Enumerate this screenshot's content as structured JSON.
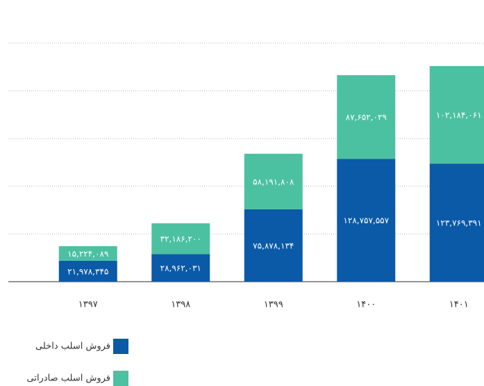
{
  "chart_data": {
    "type": "stacked_bar",
    "categories": [
      "۱۳۹۷",
      "۱۳۹۸",
      "۱۳۹۹",
      "۱۴۰۰",
      "۱۴۰۱"
    ],
    "series": [
      {
        "name": "فروش اسلب داخلی",
        "color": "#0b5aa8",
        "values": [
          21978345,
          28962031,
          75878134,
          128757557,
          123769391
        ],
        "value_labels": [
          "۲۱,۹۷۸,۳۴۵",
          "۲۸,۹۶۲,۰۳۱",
          "۷۵,۸۷۸,۱۳۴",
          "۱۲۸,۷۵۷,۵۵۷",
          "۱۲۳,۷۶۹,۳۹۱"
        ]
      },
      {
        "name": "فروش اسلب صادراتی",
        "color": "#4cc1a1",
        "values": [
          15224089,
          32186200,
          58191808,
          87652029,
          102184061
        ],
        "value_labels": [
          "۱۵,۲۲۴,۰۸۹",
          "۳۲,۱۸۶,۲۰۰",
          "۵۸,۱۹۱,۸۰۸",
          "۸۷,۶۵۲,۰۲۹",
          "۱۰۲,۱۸۴,۰۶۱"
        ]
      }
    ],
    "ylim": [
      0,
      250000000
    ],
    "yticks": [
      0,
      50000000,
      100000000,
      150000000,
      200000000,
      250000000
    ],
    "grid": true
  }
}
